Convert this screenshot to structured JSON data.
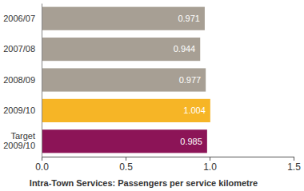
{
  "chart_data": {
    "type": "bar",
    "orientation": "horizontal",
    "x_label": "Intra-Town Services: Passengers per service kilometre",
    "categories": [
      "2006/07",
      "2007/08",
      "2008/09",
      "2009/10",
      "Target 2009/10"
    ],
    "values": [
      0.971,
      0.944,
      0.977,
      1.004,
      0.985
    ],
    "colors": [
      "#a79f94",
      "#a79f94",
      "#a79f94",
      "#f6b526",
      "#8c1457"
    ],
    "xlim": [
      0,
      1.5
    ],
    "xticks": [
      {
        "value": 0,
        "label": "0.0"
      },
      0.5,
      {
        "value": 1,
        "label": "1.0"
      },
      {
        "value": 1.5,
        "label": "1.5"
      }
    ],
    "grid": false,
    "data_labels": true
  }
}
